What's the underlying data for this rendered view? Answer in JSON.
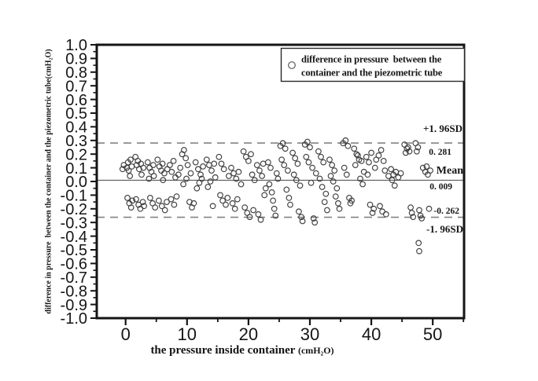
{
  "chart_data": {
    "type": "scatter",
    "title": "",
    "xlabel": "the pressure inside container",
    "xlabel_unit": "(cmH₂O)",
    "ylabel": "difference in pressure  between the container and the piezometric tube(cmH₂O)",
    "legend": {
      "position": "top-right",
      "line1": "difference in pressure  between the",
      "line2": "container and the piezometric tube",
      "marker": "open-circle"
    },
    "xlim": [
      -4.7,
      55.1
    ],
    "ylim": [
      -1.0,
      1.0
    ],
    "x_major_ticks": [
      0,
      10,
      20,
      30,
      40,
      50
    ],
    "x_minor_ticks": [
      5,
      15,
      25,
      35,
      45,
      55
    ],
    "y_major_tick_step": 0.1,
    "y_minor_tick_step": 0.05,
    "grid": false,
    "mean": 0.009,
    "upper_loa": 0.281,
    "lower_loa": -0.262,
    "annotations": {
      "upper_sd": "+1. 96SD",
      "upper_value": "0. 281",
      "mean_label": "Mean",
      "mean_value": "0. 009",
      "lower_value": "-0. 262",
      "lower_sd": "-1. 96SD"
    },
    "colors": {
      "marker": "#3f3f3f",
      "mean_line": "#5a5a5a",
      "loa_line": "#838383",
      "frame": "#141414",
      "text": "#141414"
    },
    "points": [
      [
        -0.5,
        0.09
      ],
      [
        -0.3,
        0.12
      ],
      [
        0.2,
        0.1
      ],
      [
        0.4,
        0.14
      ],
      [
        0.5,
        0.08
      ],
      [
        0.8,
        0.16
      ],
      [
        1.0,
        0.11
      ],
      [
        0.3,
        -0.12
      ],
      [
        0.6,
        -0.16
      ],
      [
        0.9,
        -0.19
      ],
      [
        1.1,
        -0.14
      ],
      [
        0.7,
        0.04
      ],
      [
        1.6,
        0.18
      ],
      [
        1.8,
        0.12
      ],
      [
        2.0,
        0.15
      ],
      [
        2.2,
        0.09
      ],
      [
        2.5,
        0.13
      ],
      [
        1.7,
        -0.13
      ],
      [
        2.1,
        -0.17
      ],
      [
        2.4,
        -0.2
      ],
      [
        2.8,
        -0.15
      ],
      [
        3.0,
        -0.18
      ],
      [
        2.6,
        0.05
      ],
      [
        2.9,
        0.1
      ],
      [
        3.6,
        0.14
      ],
      [
        3.9,
        0.1
      ],
      [
        4.2,
        0.07
      ],
      [
        4.5,
        0.12
      ],
      [
        4.0,
        -0.12
      ],
      [
        4.4,
        -0.16
      ],
      [
        4.8,
        -0.19
      ],
      [
        3.8,
        0.02
      ],
      [
        4.6,
        0.04
      ],
      [
        5.2,
        0.16
      ],
      [
        5.5,
        0.11
      ],
      [
        5.8,
        0.08
      ],
      [
        6.0,
        0.13
      ],
      [
        6.3,
        0.06
      ],
      [
        5.4,
        -0.14
      ],
      [
        5.9,
        -0.18
      ],
      [
        6.4,
        -0.21
      ],
      [
        6.7,
        -0.15
      ],
      [
        6.1,
        0.01
      ],
      [
        6.8,
        0.09
      ],
      [
        7.2,
        0.12
      ],
      [
        7.5,
        0.07
      ],
      [
        7.8,
        0.15
      ],
      [
        8.1,
        0.03
      ],
      [
        7.4,
        -0.13
      ],
      [
        7.9,
        -0.17
      ],
      [
        8.3,
        -0.11
      ],
      [
        8.6,
        0.05
      ],
      [
        8.9,
        0.1
      ],
      [
        9.2,
        0.2
      ],
      [
        9.5,
        0.23
      ],
      [
        9.8,
        0.17
      ],
      [
        10.1,
        0.12
      ],
      [
        9.4,
        -0.02
      ],
      [
        9.9,
        0.02
      ],
      [
        10.4,
        -0.15
      ],
      [
        10.8,
        -0.19
      ],
      [
        11.1,
        -0.16
      ],
      [
        10.6,
        0.06
      ],
      [
        11.4,
        0.14
      ],
      [
        11.8,
        0.09
      ],
      [
        12.2,
        0.05
      ],
      [
        12.6,
        0.11
      ],
      [
        11.6,
        -0.05
      ],
      [
        12.0,
        -0.01
      ],
      [
        12.4,
        0.02
      ],
      [
        13.2,
        0.16
      ],
      [
        13.6,
        0.12
      ],
      [
        14.0,
        0.08
      ],
      [
        14.4,
        0.13
      ],
      [
        13.4,
        -0.04
      ],
      [
        13.8,
        0.0
      ],
      [
        14.6,
        0.03
      ],
      [
        14.2,
        -0.18
      ],
      [
        15.2,
        0.18
      ],
      [
        15.6,
        0.13
      ],
      [
        16.0,
        0.09
      ],
      [
        15.4,
        -0.1
      ],
      [
        15.8,
        -0.14
      ],
      [
        16.3,
        -0.17
      ],
      [
        16.6,
        -0.12
      ],
      [
        16.8,
        0.04
      ],
      [
        17.2,
        0.1
      ],
      [
        17.6,
        0.06
      ],
      [
        18.0,
        0.02
      ],
      [
        18.4,
        0.07
      ],
      [
        17.4,
        -0.16
      ],
      [
        17.8,
        -0.2
      ],
      [
        18.2,
        -0.13
      ],
      [
        18.8,
        -0.02
      ],
      [
        19.2,
        0.22
      ],
      [
        19.6,
        0.18
      ],
      [
        20.0,
        0.15
      ],
      [
        20.4,
        0.2
      ],
      [
        19.4,
        -0.19
      ],
      [
        19.8,
        -0.23
      ],
      [
        20.2,
        -0.26
      ],
      [
        20.8,
        -0.21
      ],
      [
        20.6,
        0.05
      ],
      [
        21.0,
        0.01
      ],
      [
        21.4,
        0.12
      ],
      [
        21.8,
        0.08
      ],
      [
        22.2,
        0.04
      ],
      [
        21.6,
        -0.24
      ],
      [
        22.0,
        -0.28
      ],
      [
        22.6,
        -0.1
      ],
      [
        22.4,
        0.13
      ],
      [
        22.8,
        -0.05
      ],
      [
        23.2,
        0.14
      ],
      [
        23.6,
        0.1
      ],
      [
        23.4,
        -0.02
      ],
      [
        23.8,
        -0.08
      ],
      [
        24.0,
        -0.14
      ],
      [
        24.2,
        -0.2
      ],
      [
        24.4,
        -0.25
      ],
      [
        24.6,
        0.06
      ],
      [
        24.8,
        0.02
      ],
      [
        25.2,
        0.26
      ],
      [
        25.6,
        0.28
      ],
      [
        26.0,
        0.24
      ],
      [
        25.4,
        0.16
      ],
      [
        25.8,
        0.12
      ],
      [
        26.4,
        0.08
      ],
      [
        26.2,
        -0.06
      ],
      [
        26.6,
        -0.12
      ],
      [
        26.8,
        -0.17
      ],
      [
        27.2,
        0.21
      ],
      [
        27.6,
        0.17
      ],
      [
        28.0,
        0.13
      ],
      [
        27.4,
        0.05
      ],
      [
        27.8,
        0.01
      ],
      [
        28.4,
        -0.03
      ],
      [
        28.2,
        -0.22
      ],
      [
        28.6,
        -0.26
      ],
      [
        28.8,
        -0.29
      ],
      [
        29.2,
        0.27
      ],
      [
        29.6,
        0.29
      ],
      [
        30.0,
        0.25
      ],
      [
        29.4,
        0.18
      ],
      [
        29.8,
        0.14
      ],
      [
        30.4,
        0.1
      ],
      [
        30.2,
        -0.01
      ],
      [
        30.6,
        -0.27
      ],
      [
        30.8,
        -0.3
      ],
      [
        31.0,
        0.06
      ],
      [
        31.4,
        0.22
      ],
      [
        31.8,
        0.18
      ],
      [
        32.2,
        0.14
      ],
      [
        31.6,
        0.02
      ],
      [
        32.0,
        -0.04
      ],
      [
        32.6,
        -0.09
      ],
      [
        32.4,
        -0.15
      ],
      [
        32.8,
        -0.21
      ],
      [
        33.2,
        0.16
      ],
      [
        33.6,
        0.12
      ],
      [
        34.0,
        0.08
      ],
      [
        33.4,
        0.04
      ],
      [
        33.8,
        0.0
      ],
      [
        34.4,
        -0.05
      ],
      [
        34.2,
        -0.11
      ],
      [
        34.6,
        -0.16
      ],
      [
        34.8,
        -0.2
      ],
      [
        35.4,
        0.28
      ],
      [
        35.8,
        0.3
      ],
      [
        36.2,
        0.26
      ],
      [
        35.6,
        0.1
      ],
      [
        36.0,
        0.05
      ],
      [
        36.4,
        -0.12
      ],
      [
        36.6,
        -0.16
      ],
      [
        36.8,
        -0.14
      ],
      [
        37.2,
        0.24
      ],
      [
        37.6,
        0.2
      ],
      [
        38.0,
        0.16
      ],
      [
        37.4,
        0.12
      ],
      [
        37.8,
        0.19
      ],
      [
        38.4,
        0.15
      ],
      [
        38.2,
        0.02
      ],
      [
        38.6,
        -0.02
      ],
      [
        38.8,
        0.07
      ],
      [
        39.2,
        0.18
      ],
      [
        39.6,
        0.14
      ],
      [
        40.0,
        0.21
      ],
      [
        39.4,
        0.05
      ],
      [
        39.8,
        -0.17
      ],
      [
        40.4,
        -0.2
      ],
      [
        40.2,
        -0.23
      ],
      [
        40.8,
        0.16
      ],
      [
        40.6,
        0.1
      ],
      [
        41.2,
        0.19
      ],
      [
        41.6,
        0.23
      ],
      [
        42.0,
        0.15
      ],
      [
        41.4,
        -0.18
      ],
      [
        41.8,
        -0.22
      ],
      [
        42.4,
        -0.24
      ],
      [
        42.2,
        0.08
      ],
      [
        42.8,
        0.04
      ],
      [
        43.2,
        0.09
      ],
      [
        43.6,
        0.05
      ],
      [
        44.0,
        0.07
      ],
      [
        43.4,
        0.01
      ],
      [
        43.8,
        -0.03
      ],
      [
        44.4,
        0.03
      ],
      [
        44.8,
        0.06
      ],
      [
        45.4,
        0.27
      ],
      [
        45.8,
        0.24
      ],
      [
        46.2,
        0.22
      ],
      [
        45.6,
        0.21
      ],
      [
        46.0,
        0.25
      ],
      [
        46.4,
        -0.19
      ],
      [
        46.6,
        -0.23
      ],
      [
        46.8,
        -0.26
      ],
      [
        47.2,
        0.28
      ],
      [
        47.6,
        0.25
      ],
      [
        47.4,
        0.22
      ],
      [
        47.8,
        -0.21
      ],
      [
        48.0,
        -0.25
      ],
      [
        48.2,
        -0.27
      ],
      [
        47.7,
        -0.45
      ],
      [
        47.8,
        -0.51
      ],
      [
        48.4,
        0.1
      ],
      [
        48.8,
        0.07
      ],
      [
        49.2,
        0.05
      ],
      [
        49.6,
        0.08
      ],
      [
        49.0,
        0.11
      ],
      [
        49.4,
        -0.2
      ]
    ]
  }
}
